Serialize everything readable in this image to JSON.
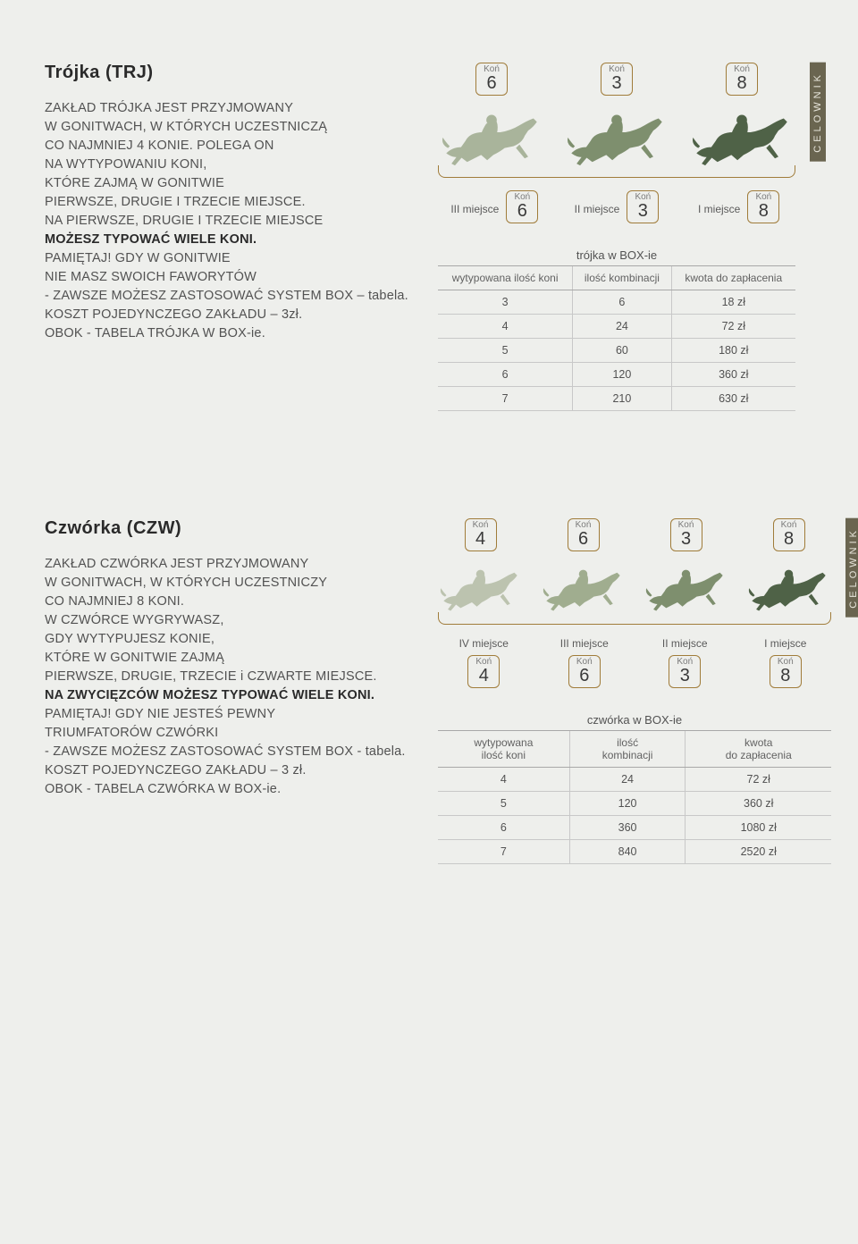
{
  "trj": {
    "title": "Trójka (TRJ)",
    "p1a": "ZAKŁAD TRÓJKA JEST PRZYJMOWANY",
    "p1b": "W GONITWACH, W KTÓRYCH UCZESTNICZĄ",
    "p1c": "CO NAJMNIEJ 4 KONIE. POLEGA ON",
    "p1d": "NA WYTYPOWANIU KONI,",
    "p1e": "KTÓRE ZAJMĄ W GONITWIE",
    "p1f": "PIERWSZE, DRUGIE I TRZECIE MIEJSCE.",
    "p1g": "NA PIERWSZE, DRUGIE I TRZECIE MIEJSCE",
    "p1h": "MOŻESZ TYPOWAĆ WIELE KONI.",
    "p1i": "PAMIĘTAJ! GDY W GONITWIE",
    "p1j": "NIE MASZ SWOICH FAWORYTÓW",
    "p1k": "- ZAWSZE MOŻESZ ZASTOSOWAĆ SYSTEM BOX – tabela.",
    "p1l": "KOSZT POJEDYNCZEGO ZAKŁADU – 3zł.",
    "p1m": "OBOK - TABELA TRÓJKA W BOX-ie.",
    "horses": [
      {
        "kon": "Koń",
        "num": "6",
        "color": "#a9b49b"
      },
      {
        "kon": "Koń",
        "num": "3",
        "color": "#7e8f6e"
      },
      {
        "kon": "Koń",
        "num": "8",
        "color": "#4f6247"
      }
    ],
    "places": [
      {
        "label": "III miejsce",
        "kon": "Koń",
        "num": "6"
      },
      {
        "label": "II miejsce",
        "kon": "Koń",
        "num": "3"
      },
      {
        "label": "I miejsce",
        "kon": "Koń",
        "num": "8"
      }
    ],
    "celownik": "CELOWNIK",
    "table": {
      "caption": "trójka w BOX-ie",
      "headers": [
        "wytypowana ilość koni",
        "ilość kombinacji",
        "kwota do zapłacenia"
      ],
      "rows": [
        [
          "3",
          "6",
          "18 zł"
        ],
        [
          "4",
          "24",
          "72 zł"
        ],
        [
          "5",
          "60",
          "180 zł"
        ],
        [
          "6",
          "120",
          "360 zł"
        ],
        [
          "7",
          "210",
          "630 zł"
        ]
      ]
    }
  },
  "czw": {
    "title": "Czwórka (CZW)",
    "p1a": "ZAKŁAD CZWÓRKA JEST PRZYJMOWANY",
    "p1b": "W GONITWACH, W KTÓRYCH UCZESTNICZY",
    "p1c": "CO NAJMNIEJ 8 KONI.",
    "p1d": "W CZWÓRCE WYGRYWASZ,",
    "p1e": "GDY WYTYPUJESZ KONIE,",
    "p1f": "KTÓRE W GONITWIE ZAJMĄ",
    "p1g": "PIERWSZE, DRUGIE, TRZECIE i CZWARTE MIEJSCE.",
    "p1h": "NA ZWYCIĘZCÓW MOŻESZ TYPOWAĆ WIELE KONI.",
    "p1i": "PAMIĘTAJ! GDY NIE JESTEŚ PEWNY",
    "p1j": "TRIUMFATORÓW CZWÓRKI",
    "p1k": "- ZAWSZE MOŻESZ ZASTOSOWAĆ SYSTEM BOX - tabela.",
    "p1l": "KOSZT POJEDYNCZEGO ZAKŁADU – 3 zł.",
    "p1m": "OBOK - TABELA CZWÓRKA W BOX-ie.",
    "horses": [
      {
        "kon": "Koń",
        "num": "4",
        "color": "#bcc3af"
      },
      {
        "kon": "Koń",
        "num": "6",
        "color": "#a0ad8f"
      },
      {
        "kon": "Koń",
        "num": "3",
        "color": "#7e8f6e"
      },
      {
        "kon": "Koń",
        "num": "8",
        "color": "#4f6247"
      }
    ],
    "places": [
      {
        "label": "IV miejsce",
        "kon": "Koń",
        "num": "4"
      },
      {
        "label": "III miejsce",
        "kon": "Koń",
        "num": "6"
      },
      {
        "label": "II miejsce",
        "kon": "Koń",
        "num": "3"
      },
      {
        "label": "I miejsce",
        "kon": "Koń",
        "num": "8"
      }
    ],
    "celownik": "CELOWNIK",
    "table": {
      "caption": "czwórka w BOX-ie",
      "headers": [
        "wytypowana\nilość koni",
        "ilość\nkombinacji",
        "kwota\ndo zapłacenia"
      ],
      "rows": [
        [
          "4",
          "24",
          "72 zł"
        ],
        [
          "5",
          "120",
          "360 zł"
        ],
        [
          "6",
          "360",
          "1080 zł"
        ],
        [
          "7",
          "840",
          "2520 zł"
        ]
      ]
    }
  }
}
